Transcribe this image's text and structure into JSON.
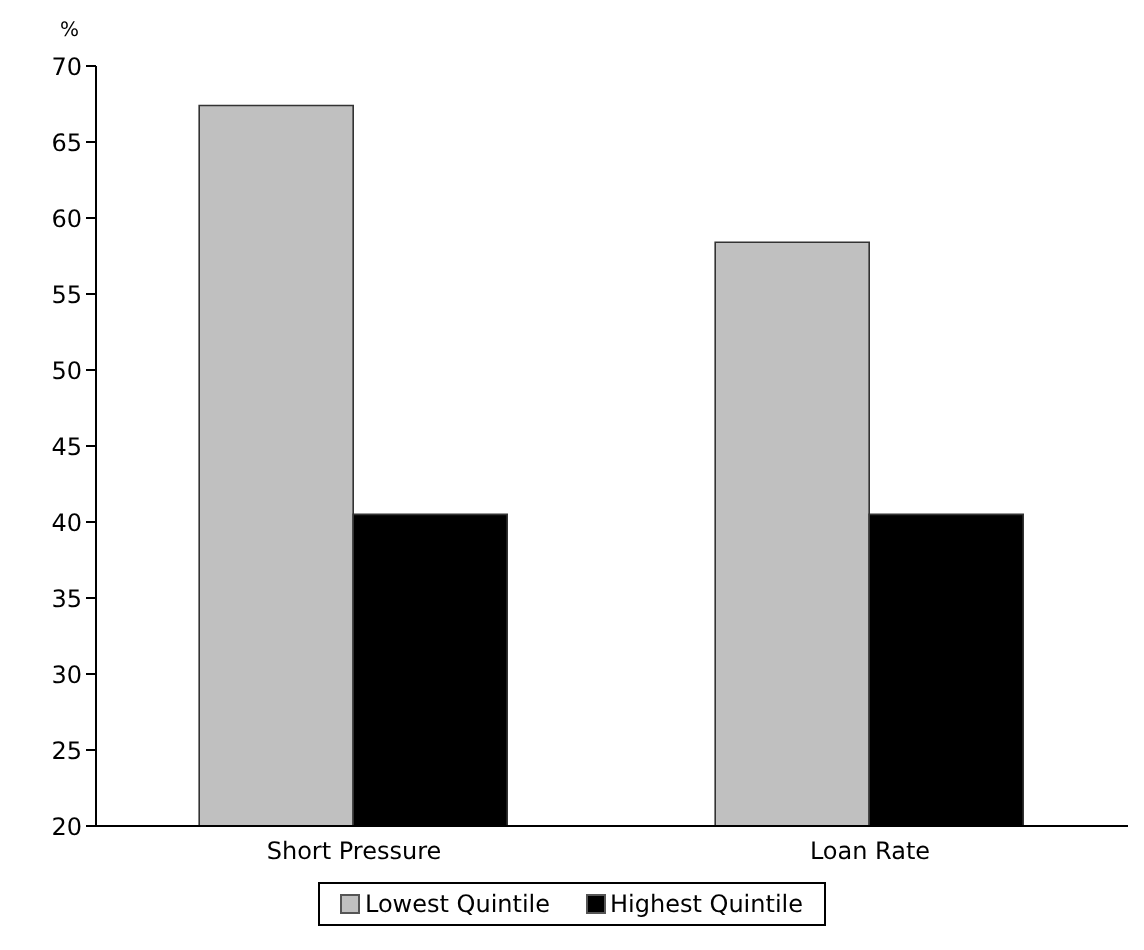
{
  "chart_data": {
    "type": "bar",
    "ylabel": "%",
    "categories": [
      "Short Pressure",
      "Loan Rate"
    ],
    "series": [
      {
        "name": "Lowest Quintile",
        "color": "#c0c0c0",
        "values": [
          67.4,
          58.4
        ]
      },
      {
        "name": "Highest Quintile",
        "color": "#000000",
        "values": [
          40.5,
          40.5
        ]
      }
    ],
    "ylim": [
      20,
      70
    ],
    "yticks": [
      20,
      25,
      30,
      35,
      40,
      45,
      50,
      55,
      60,
      65,
      70
    ],
    "grid": false,
    "legend": "bottom"
  }
}
